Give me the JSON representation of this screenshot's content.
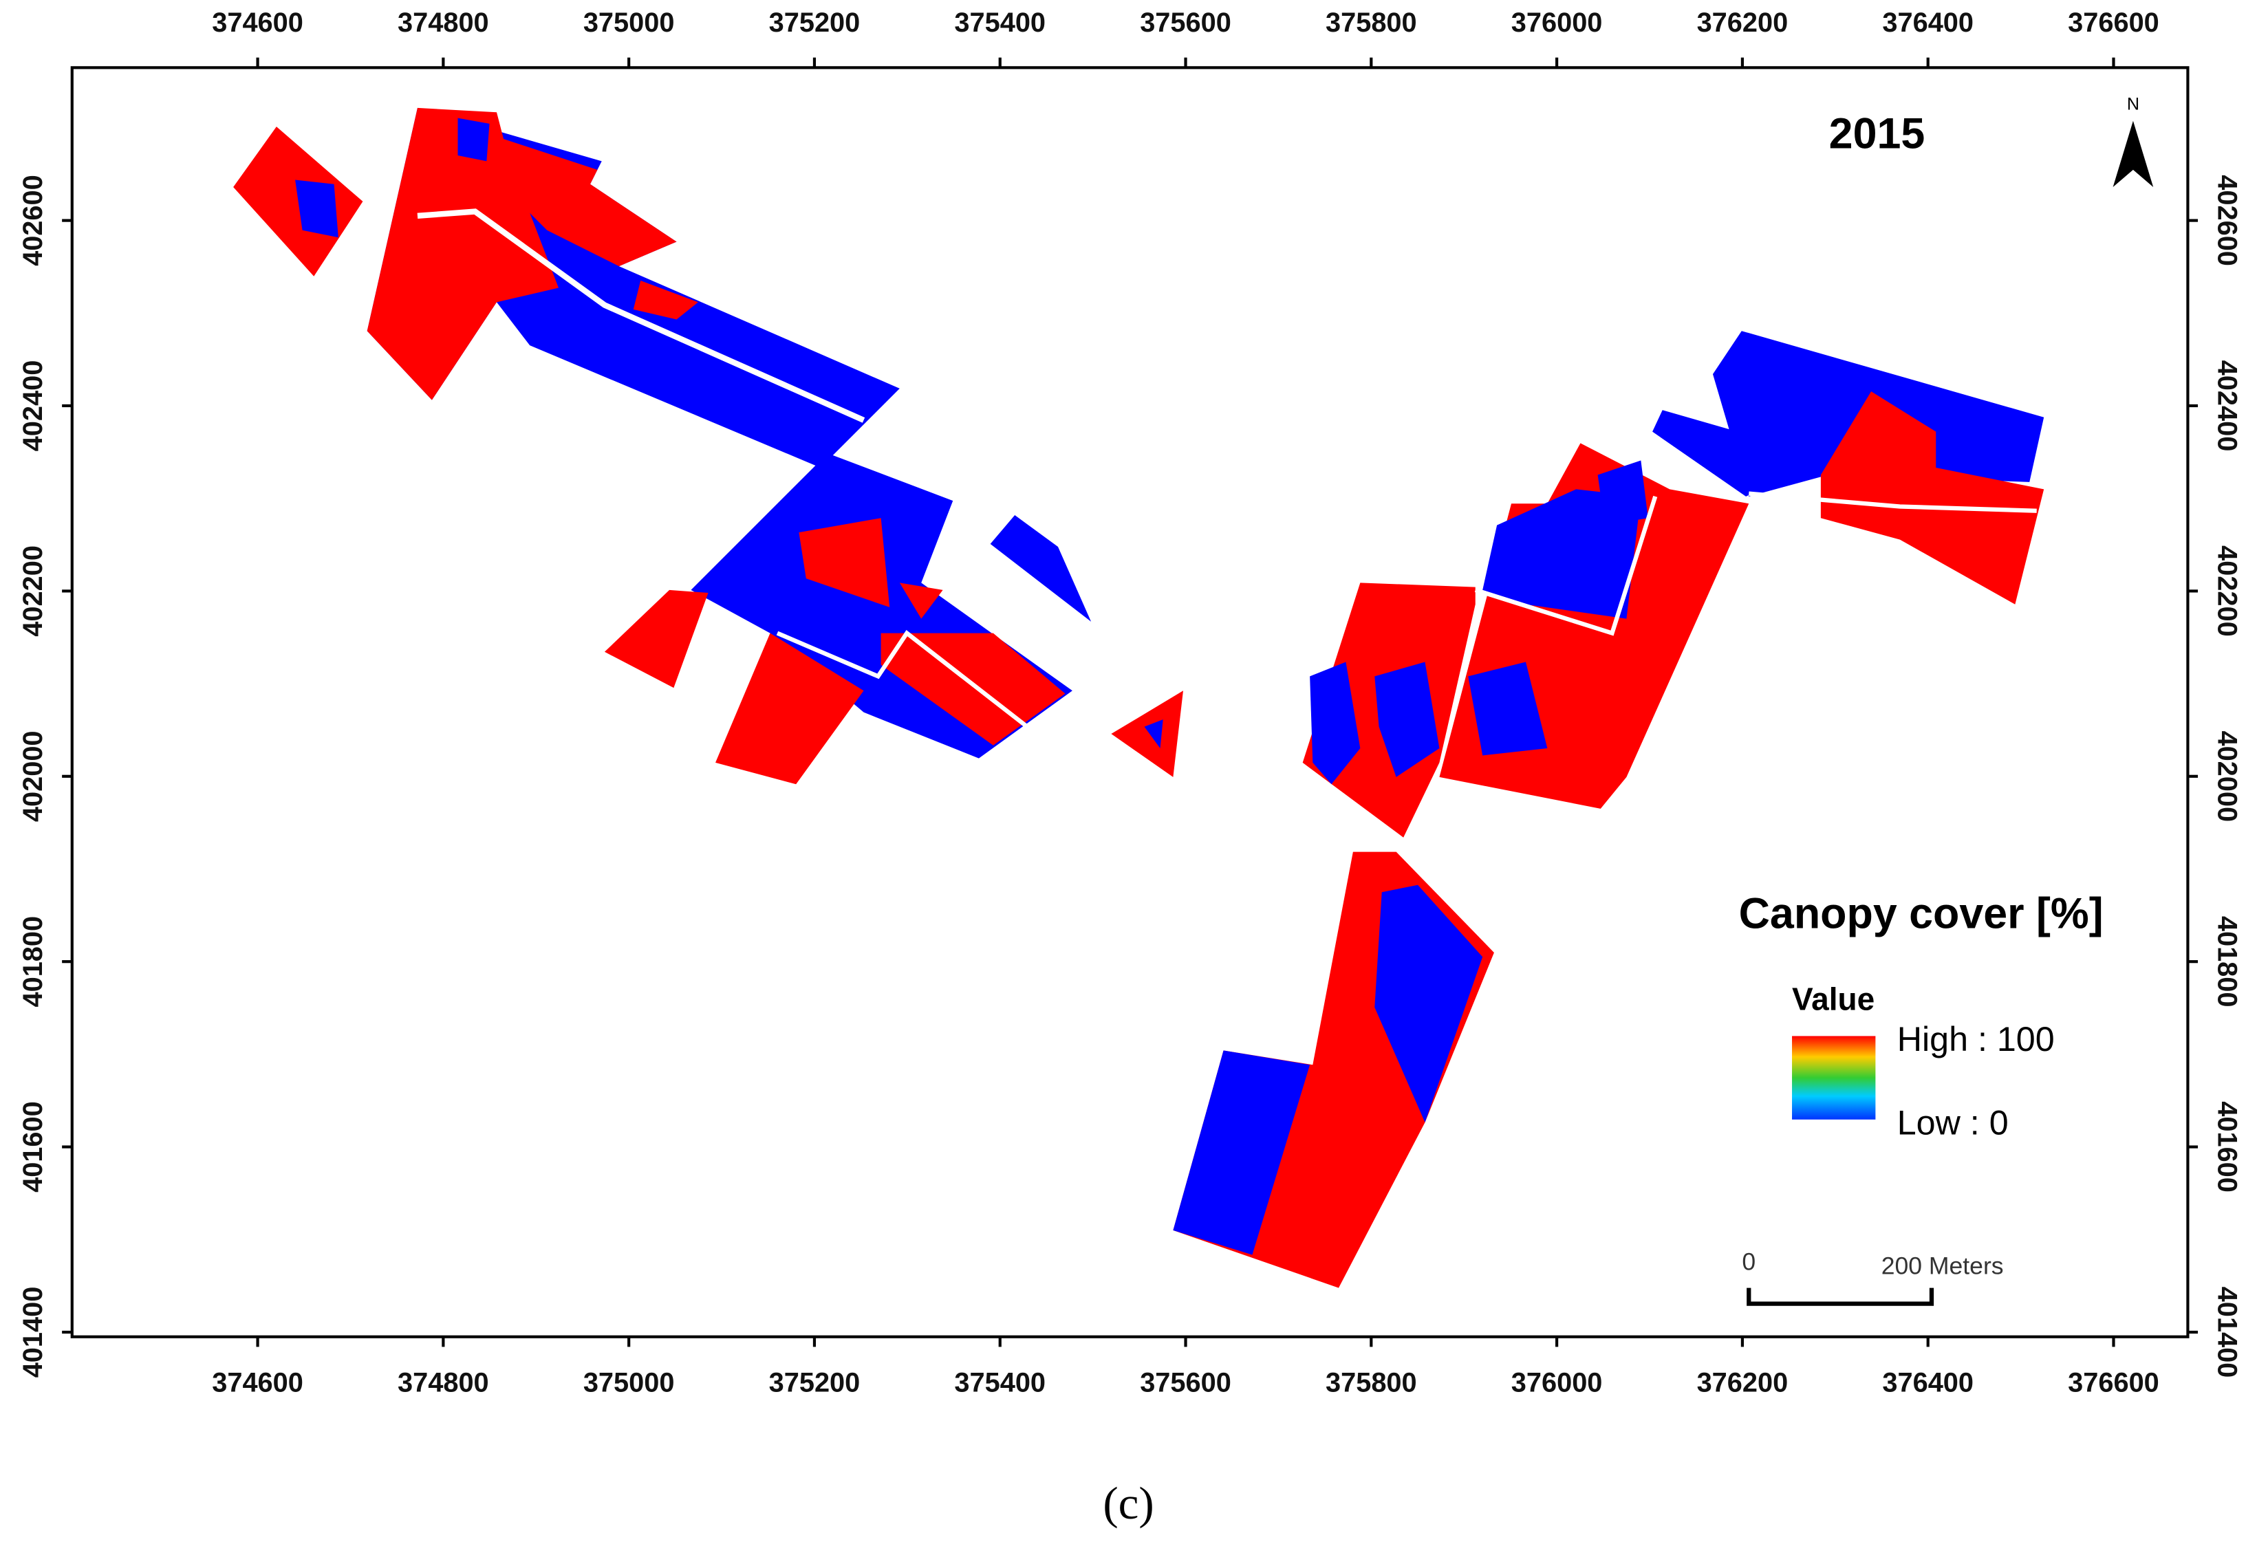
{
  "map": {
    "year": "2015",
    "north": "N",
    "xlim": [
      374400,
      376680
    ],
    "ylim": [
      401395,
      402765
    ],
    "xticks": [
      374600,
      374800,
      375000,
      375200,
      375400,
      375600,
      375800,
      376000,
      376200,
      376400,
      376600
    ],
    "yticks": [
      401400,
      401600,
      401800,
      402000,
      402200,
      402400,
      402600
    ],
    "legend": {
      "title": "Canopy cover [%]",
      "field": "Value",
      "high": "High : 100",
      "low": "Low : 0"
    },
    "scale_bar": {
      "start": "0",
      "end": "200 Meters"
    }
  },
  "caption": "(c)"
}
